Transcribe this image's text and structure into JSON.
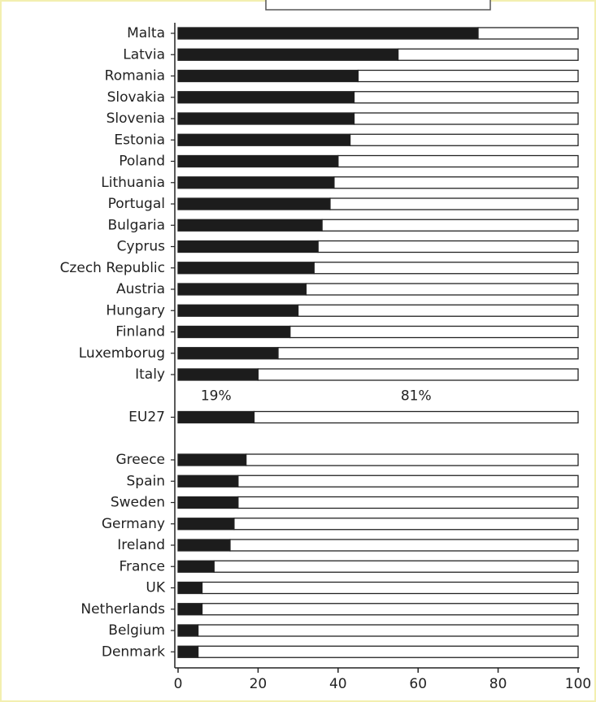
{
  "chart_data": {
    "type": "stacked-bar-horizontal",
    "categories": [
      "Malta",
      "Latvia",
      "Romania",
      "Slovakia",
      "Slovenia",
      "Estonia",
      "Poland",
      "Lithuania",
      "Portugal",
      "Bulgaria",
      "Cyprus",
      "Czech Republic",
      "Austria",
      "Hungary",
      "Finland",
      "Luxemborug",
      "Italy",
      "EU27",
      "Greece",
      "Spain",
      "Sweden",
      "Germany",
      "Ireland",
      "France",
      "UK",
      "Netherlands",
      "Belgium",
      "Denmark"
    ],
    "series": [
      {
        "color": "#1c1c1c",
        "values": [
          75,
          55,
          45,
          44,
          44,
          43,
          40,
          39,
          38,
          36,
          35,
          34,
          32,
          30,
          28,
          25,
          20,
          19,
          17,
          15,
          15,
          14,
          13,
          9,
          6,
          6,
          5,
          5
        ],
        "value_labels": [
          null,
          null,
          null,
          null,
          null,
          null,
          null,
          null,
          null,
          null,
          null,
          null,
          null,
          null,
          null,
          null,
          null,
          "19%",
          null,
          null,
          null,
          null,
          null,
          null,
          null,
          null,
          null,
          null
        ]
      },
      {
        "color": "#ffffff",
        "values": [
          25,
          45,
          55,
          56,
          56,
          57,
          60,
          61,
          62,
          64,
          65,
          66,
          68,
          70,
          72,
          75,
          80,
          81,
          83,
          85,
          85,
          86,
          87,
          91,
          94,
          94,
          95,
          95
        ],
        "value_labels": [
          null,
          null,
          null,
          null,
          null,
          null,
          null,
          null,
          null,
          null,
          null,
          null,
          null,
          null,
          null,
          null,
          null,
          "81%",
          null,
          null,
          null,
          null,
          null,
          null,
          null,
          null,
          null,
          null
        ]
      }
    ],
    "xlim": [
      0,
      100
    ],
    "xticks": [
      0,
      20,
      40,
      60,
      80,
      100
    ]
  }
}
